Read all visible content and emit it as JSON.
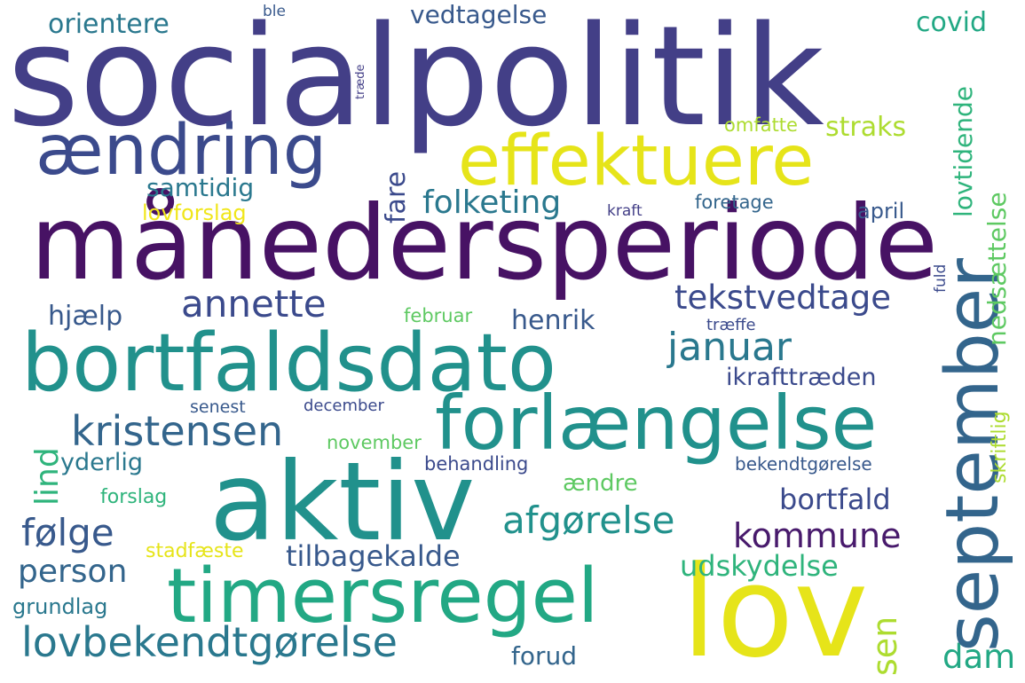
{
  "colors": {
    "navy": "#3b4a8c",
    "indigo": "#433f87",
    "purple": "#471264",
    "darkviolet": "#481a6c",
    "blue": "#38598c",
    "slate": "#33658c",
    "teal": "#2a788e",
    "tealgreen": "#21918c",
    "green": "#22a884",
    "green2": "#2fb47c",
    "lightgreen": "#5ec962",
    "yellowgreen": "#addc30",
    "yellow": "#e6e419",
    "yellow2": "#f0e61a"
  },
  "words": [
    {
      "id": "socialpolitik",
      "text": "socialpolitik",
      "color": "#433f87"
    },
    {
      "id": "maanedersperiode",
      "text": "månedersperiode",
      "color": "#471264"
    },
    {
      "id": "bortfaldsdato",
      "text": "bortfaldsdato",
      "color": "#21918c"
    },
    {
      "id": "aktiv",
      "text": "aktiv",
      "color": "#21918c"
    },
    {
      "id": "lov",
      "text": "lov",
      "color": "#e6e419"
    },
    {
      "id": "forlaengelse",
      "text": "forlængelse",
      "color": "#21918c"
    },
    {
      "id": "timersregel",
      "text": "timersregel",
      "color": "#22a884"
    },
    {
      "id": "effektuere",
      "text": "effektuere",
      "color": "#e6e419"
    },
    {
      "id": "aendring",
      "text": "ændring",
      "color": "#3b4a8c"
    },
    {
      "id": "september",
      "text": "september",
      "color": "#33658c"
    },
    {
      "id": "kristensen",
      "text": "kristensen",
      "color": "#33658c"
    },
    {
      "id": "annette",
      "text": "annette",
      "color": "#3b4a8c"
    },
    {
      "id": "lovbekendtgorelse",
      "text": "lovbekendtgørelse",
      "color": "#2a788e"
    },
    {
      "id": "afgorelse",
      "text": "afgørelse",
      "color": "#21918c"
    },
    {
      "id": "januar",
      "text": "januar",
      "color": "#2a788e"
    },
    {
      "id": "tekstvedtage",
      "text": "tekstvedtage",
      "color": "#3b4a8c"
    },
    {
      "id": "kommune",
      "text": "kommune",
      "color": "#481a6c"
    },
    {
      "id": "folge",
      "text": "følge",
      "color": "#38598c"
    },
    {
      "id": "folketing",
      "text": "folketing",
      "color": "#2a788e"
    },
    {
      "id": "tilbagekalde",
      "text": "tilbagekalde",
      "color": "#38598c"
    },
    {
      "id": "udskydelse",
      "text": "udskydelse",
      "color": "#2fb47c"
    },
    {
      "id": "person",
      "text": "person",
      "color": "#33658c"
    },
    {
      "id": "dam",
      "text": "dam",
      "color": "#22a884"
    },
    {
      "id": "bortfald",
      "text": "bortfald",
      "color": "#3b4a8c"
    },
    {
      "id": "henrik",
      "text": "henrik",
      "color": "#38598c"
    },
    {
      "id": "ikrafttraeden",
      "text": "ikrafttræden",
      "color": "#3b4a8c"
    },
    {
      "id": "orientere",
      "text": "orientere",
      "color": "#2a788e"
    },
    {
      "id": "vedtagelse",
      "text": "vedtagelse",
      "color": "#38598c"
    },
    {
      "id": "covid",
      "text": "covid",
      "color": "#22a884"
    },
    {
      "id": "straks",
      "text": "straks",
      "color": "#addc30"
    },
    {
      "id": "samtidig",
      "text": "samtidig",
      "color": "#2a788e"
    },
    {
      "id": "hjaelp",
      "text": "hjælp",
      "color": "#38598c"
    },
    {
      "id": "yderlig",
      "text": "yderlig",
      "color": "#2a788e"
    },
    {
      "id": "forud",
      "text": "forud",
      "color": "#33658c"
    },
    {
      "id": "grundlag",
      "text": "grundlag",
      "color": "#2a788e"
    },
    {
      "id": "lovforslag",
      "text": "lovforslag",
      "color": "#f0e61a"
    },
    {
      "id": "april",
      "text": "april",
      "color": "#38598c"
    },
    {
      "id": "omfatte",
      "text": "omfatte",
      "color": "#addc30"
    },
    {
      "id": "foretage",
      "text": "foretage",
      "color": "#33658c"
    },
    {
      "id": "kraft",
      "text": "kraft",
      "color": "#433f87"
    },
    {
      "id": "februar",
      "text": "februar",
      "color": "#5ec962"
    },
    {
      "id": "traeffe",
      "text": "træffe",
      "color": "#3b4a8c"
    },
    {
      "id": "senest",
      "text": "senest",
      "color": "#38598c"
    },
    {
      "id": "december",
      "text": "december",
      "color": "#3b4a8c"
    },
    {
      "id": "november",
      "text": "november",
      "color": "#5ec962"
    },
    {
      "id": "behandling",
      "text": "behandling",
      "color": "#3b4a8c"
    },
    {
      "id": "aendre",
      "text": "ændre",
      "color": "#5ec962"
    },
    {
      "id": "forslag",
      "text": "forslag",
      "color": "#2fb47c"
    },
    {
      "id": "stadfaeste",
      "text": "stadfæste",
      "color": "#e6e419"
    },
    {
      "id": "bekendtgorelse",
      "text": "bekendtgørelse",
      "color": "#38598c"
    },
    {
      "id": "ble",
      "text": "ble",
      "color": "#38598c"
    },
    {
      "id": "traede",
      "text": "træde",
      "color": "#433f87"
    },
    {
      "id": "fare",
      "text": "fare",
      "color": "#3b4a8c"
    },
    {
      "id": "lind",
      "text": "lind",
      "color": "#2fb47c"
    },
    {
      "id": "lovtidende",
      "text": "lovtidende",
      "color": "#2fb47c"
    },
    {
      "id": "nedsaettelse",
      "text": "nedsættelse",
      "color": "#5ec962"
    },
    {
      "id": "skriftlig",
      "text": "skriftlig",
      "color": "#addc30"
    },
    {
      "id": "sen",
      "text": "sen",
      "color": "#addc30"
    },
    {
      "id": "fuld",
      "text": "fuld",
      "color": "#3b4a8c"
    }
  ]
}
